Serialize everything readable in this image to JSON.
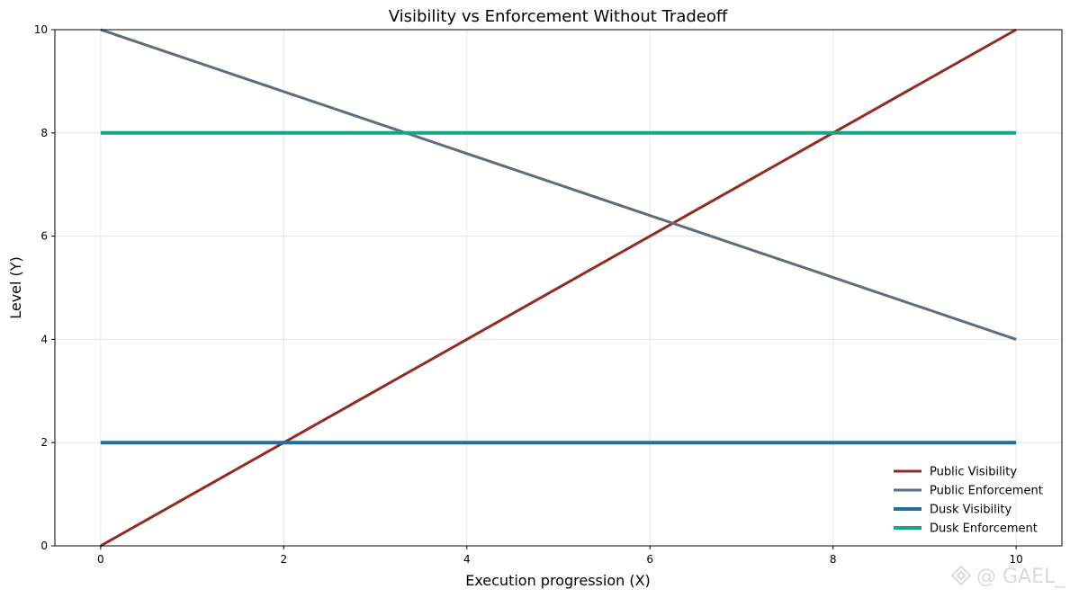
{
  "chart_data": {
    "type": "line",
    "title": "Visibility vs Enforcement Without Tradeoff",
    "xlabel": "Execution progression (X)",
    "ylabel": "Level (Y)",
    "xlim": [
      -0.5,
      10.5
    ],
    "ylim": [
      0,
      10
    ],
    "xticks": [
      0,
      2,
      4,
      6,
      8,
      10
    ],
    "yticks": [
      0,
      2,
      4,
      6,
      8,
      10
    ],
    "grid": true,
    "legend_position": "lower-right",
    "series": [
      {
        "name": "Public Visibility",
        "color": "#922b21",
        "width": 3,
        "x": [
          0,
          10
        ],
        "y": [
          0,
          10
        ]
      },
      {
        "name": "Public Enforcement",
        "color": "#5d6d7e",
        "width": 3,
        "x": [
          0,
          10
        ],
        "y": [
          10,
          4
        ]
      },
      {
        "name": "Dusk Visibility",
        "color": "#1f6f9f",
        "width": 4,
        "x": [
          0,
          10
        ],
        "y": [
          2,
          2
        ]
      },
      {
        "name": "Dusk Enforcement",
        "color": "#17a589",
        "width": 4,
        "x": [
          0,
          10
        ],
        "y": [
          8,
          8
        ]
      }
    ]
  },
  "watermark": {
    "text": "@ GAEL_",
    "icon": "binance-logo-icon"
  }
}
